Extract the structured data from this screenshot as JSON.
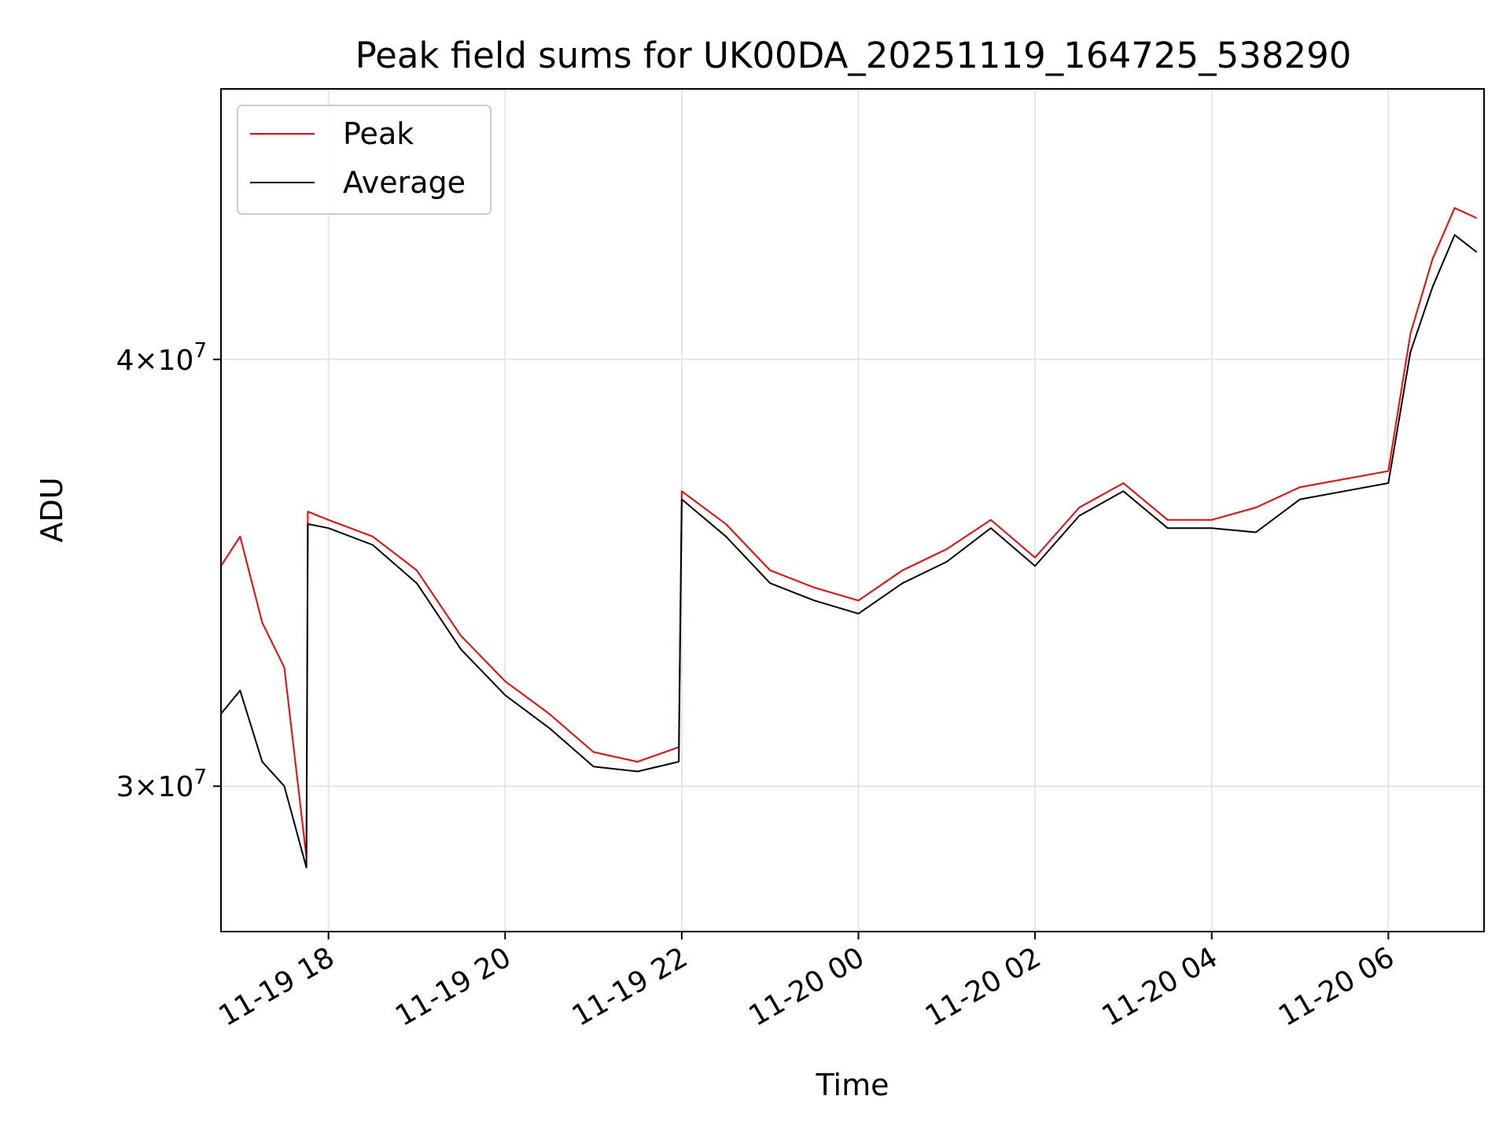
{
  "chart_data": {
    "type": "line",
    "title": "Peak field sums for UK00DA_20251119_164725_538290",
    "xlabel": "Time",
    "ylabel": "ADU",
    "yscale": "log",
    "grid": true,
    "legend_placement": "upper-left",
    "xlim": [
      "2025-11-19T16:47",
      "2025-11-20T07:05"
    ],
    "ylim": [
      27200000,
      48000000
    ],
    "x_ticks": [
      {
        "value": "2025-11-19T18:00",
        "label": "11-19 18"
      },
      {
        "value": "2025-11-19T20:00",
        "label": "11-19 20"
      },
      {
        "value": "2025-11-19T22:00",
        "label": "11-19 22"
      },
      {
        "value": "2025-11-20T00:00",
        "label": "11-20 00"
      },
      {
        "value": "2025-11-20T02:00",
        "label": "11-20 02"
      },
      {
        "value": "2025-11-20T04:00",
        "label": "11-20 04"
      },
      {
        "value": "2025-11-20T06:00",
        "label": "11-20 06"
      }
    ],
    "y_ticks": [
      {
        "value": 30000000,
        "base": "3",
        "exponent": "7"
      },
      {
        "value": 40000000,
        "base": "4",
        "exponent": "7"
      }
    ],
    "series": [
      {
        "name": "Peak",
        "color": "#ff0000",
        "x": [
          "2025-11-19T16:47",
          "2025-11-19T17:00",
          "2025-11-19T17:15",
          "2025-11-19T17:30",
          "2025-11-19T17:45",
          "2025-11-19T17:46",
          "2025-11-19T18:00",
          "2025-11-19T18:30",
          "2025-11-19T19:00",
          "2025-11-19T19:30",
          "2025-11-19T20:00",
          "2025-11-19T20:30",
          "2025-11-19T21:00",
          "2025-11-19T21:30",
          "2025-11-19T21:58",
          "2025-11-19T22:00",
          "2025-11-19T22:30",
          "2025-11-19T23:00",
          "2025-11-19T23:30",
          "2025-11-20T00:00",
          "2025-11-20T00:30",
          "2025-11-20T01:00",
          "2025-11-20T01:30",
          "2025-11-20T02:00",
          "2025-11-20T02:30",
          "2025-11-20T03:00",
          "2025-11-20T03:30",
          "2025-11-20T04:00",
          "2025-11-20T04:30",
          "2025-11-20T05:00",
          "2025-11-20T05:30",
          "2025-11-20T06:00",
          "2025-11-20T06:15",
          "2025-11-20T06:30",
          "2025-11-20T06:45",
          "2025-11-20T07:00"
        ],
        "values": [
          34800000,
          35500000,
          33500000,
          32500000,
          28600000,
          36100000,
          35900000,
          35500000,
          34700000,
          33200000,
          32200000,
          31500000,
          30700000,
          30500000,
          30800000,
          36600000,
          35800000,
          34700000,
          34300000,
          34000000,
          34700000,
          35200000,
          35900000,
          35000000,
          36200000,
          36800000,
          35900000,
          35900000,
          36200000,
          36700000,
          36900000,
          37100000,
          40700000,
          42800000,
          44300000,
          44000000
        ]
      },
      {
        "name": "Average",
        "color": "#000000",
        "x": [
          "2025-11-19T16:47",
          "2025-11-19T17:00",
          "2025-11-19T17:15",
          "2025-11-19T17:30",
          "2025-11-19T17:45",
          "2025-11-19T17:46",
          "2025-11-19T18:00",
          "2025-11-19T18:30",
          "2025-11-19T19:00",
          "2025-11-19T19:30",
          "2025-11-19T20:00",
          "2025-11-19T20:30",
          "2025-11-19T21:00",
          "2025-11-19T21:30",
          "2025-11-19T21:58",
          "2025-11-19T22:00",
          "2025-11-19T22:30",
          "2025-11-19T23:00",
          "2025-11-19T23:30",
          "2025-11-20T00:00",
          "2025-11-20T00:30",
          "2025-11-20T01:00",
          "2025-11-20T01:30",
          "2025-11-20T02:00",
          "2025-11-20T02:30",
          "2025-11-20T03:00",
          "2025-11-20T03:30",
          "2025-11-20T04:00",
          "2025-11-20T04:30",
          "2025-11-20T05:00",
          "2025-11-20T05:30",
          "2025-11-20T06:00",
          "2025-11-20T06:15",
          "2025-11-20T06:30",
          "2025-11-20T06:45",
          "2025-11-20T07:00"
        ],
        "values": [
          31500000,
          32000000,
          30500000,
          30000000,
          28400000,
          35800000,
          35700000,
          35300000,
          34400000,
          32900000,
          31900000,
          31200000,
          30400000,
          30300000,
          30500000,
          36400000,
          35500000,
          34400000,
          34000000,
          33700000,
          34400000,
          34900000,
          35700000,
          34800000,
          36000000,
          36600000,
          35700000,
          35700000,
          35600000,
          36400000,
          36600000,
          36800000,
          40200000,
          42000000,
          43500000,
          43000000
        ]
      }
    ]
  }
}
